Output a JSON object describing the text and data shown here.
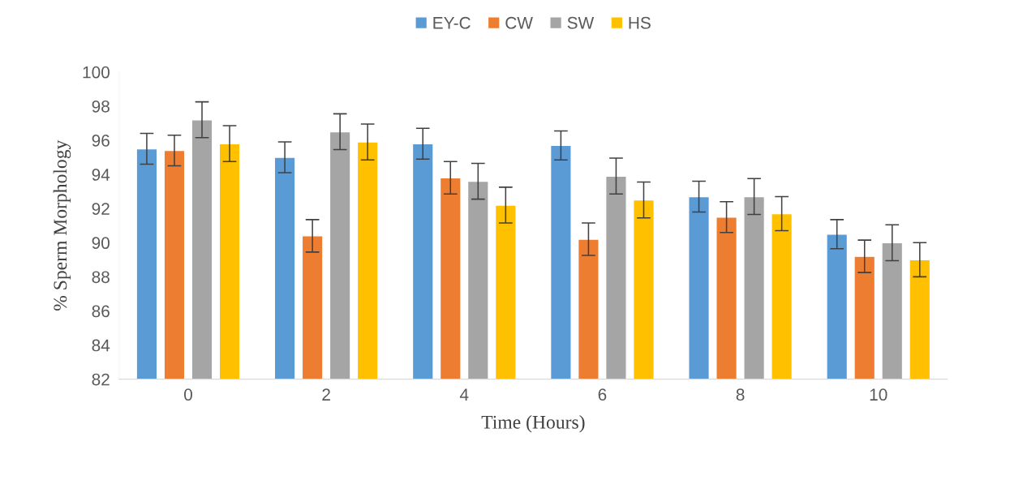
{
  "chart_data": {
    "type": "bar",
    "xlabel": "Time (Hours)",
    "ylabel": "% Sperm Morphology",
    "categories": [
      "0",
      "2",
      "4",
      "6",
      "8",
      "10"
    ],
    "series": [
      {
        "name": "EY-C",
        "color": "#5b9bd5",
        "values": [
          95.5,
          95.0,
          95.8,
          95.7,
          92.7,
          90.5
        ],
        "errors": [
          0.9,
          0.9,
          0.9,
          0.85,
          0.9,
          0.85
        ]
      },
      {
        "name": "CW",
        "color": "#ed7d31",
        "values": [
          95.4,
          90.4,
          93.8,
          90.2,
          91.5,
          89.2
        ],
        "errors": [
          0.9,
          0.95,
          0.95,
          0.95,
          0.9,
          0.95
        ]
      },
      {
        "name": "SW",
        "color": "#a5a5a5",
        "values": [
          97.2,
          96.5,
          93.6,
          93.9,
          92.7,
          90.0
        ],
        "errors": [
          1.05,
          1.05,
          1.05,
          1.05,
          1.05,
          1.05
        ]
      },
      {
        "name": "HS",
        "color": "#ffc000",
        "values": [
          95.8,
          95.9,
          92.2,
          92.5,
          91.7,
          89.0
        ],
        "errors": [
          1.05,
          1.05,
          1.05,
          1.05,
          1.0,
          1.0
        ]
      }
    ],
    "ylim": [
      82,
      100
    ],
    "yticks": [
      82,
      84,
      86,
      88,
      90,
      92,
      94,
      96,
      98,
      100
    ],
    "grid": false,
    "legend": "top"
  }
}
